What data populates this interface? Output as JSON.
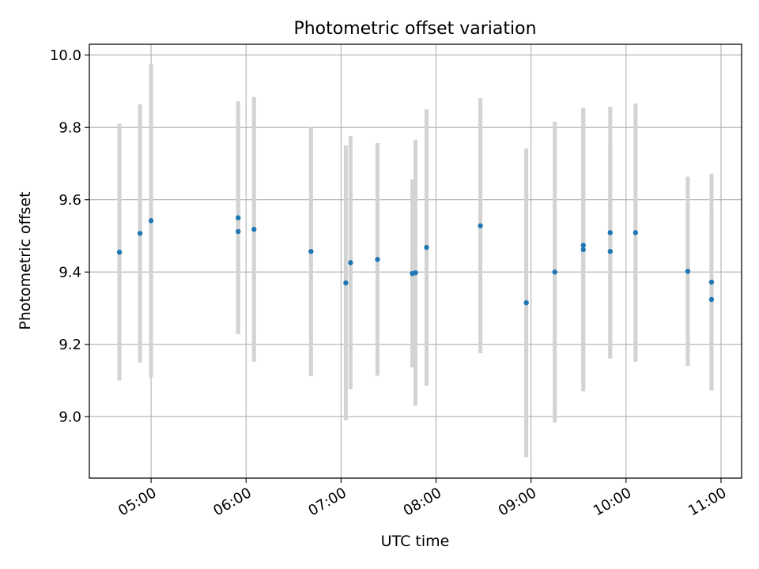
{
  "chart_data": {
    "type": "scatter",
    "title": "Photometric offset variation",
    "xlabel": "UTC time",
    "ylabel": "Photometric offset",
    "x_tick_labels": [
      "05:00",
      "06:00",
      "07:00",
      "08:00",
      "09:00",
      "10:00",
      "11:00"
    ],
    "x_ticks_minutes": [
      300,
      360,
      420,
      480,
      540,
      600,
      660
    ],
    "y_tick_labels": [
      "9.0",
      "9.2",
      "9.4",
      "9.6",
      "9.8",
      "10.0"
    ],
    "y_ticks": [
      9.0,
      9.2,
      9.4,
      9.6,
      9.8,
      10.0
    ],
    "xlim_minutes": [
      261,
      673
    ],
    "ylim": [
      8.83,
      10.03
    ],
    "grid": true,
    "point_color": "#1f77b4",
    "errorbar_color": "#d3d3d3",
    "points": [
      {
        "time": "04:40",
        "y": 9.455,
        "err": 0.355
      },
      {
        "time": "04:53",
        "y": 9.507,
        "err": 0.357
      },
      {
        "time": "05:00",
        "y": 9.542,
        "err": 0.433
      },
      {
        "time": "05:55",
        "y": 9.55,
        "err": 0.322
      },
      {
        "time": "05:55",
        "y": 9.512,
        "err": 0.28
      },
      {
        "time": "06:05",
        "y": 9.518,
        "err": 0.366
      },
      {
        "time": "06:41",
        "y": 9.457,
        "err": 0.345
      },
      {
        "time": "07:03",
        "y": 9.37,
        "err": 0.38
      },
      {
        "time": "07:06",
        "y": 9.426,
        "err": 0.35
      },
      {
        "time": "07:23",
        "y": 9.435,
        "err": 0.322
      },
      {
        "time": "07:45",
        "y": 9.396,
        "err": 0.26
      },
      {
        "time": "07:47",
        "y": 9.398,
        "err": 0.368
      },
      {
        "time": "07:54",
        "y": 9.468,
        "err": 0.382
      },
      {
        "time": "08:28",
        "y": 9.528,
        "err": 0.353
      },
      {
        "time": "08:57",
        "y": 9.315,
        "err": 0.427
      },
      {
        "time": "09:15",
        "y": 9.4,
        "err": 0.416
      },
      {
        "time": "09:33",
        "y": 9.474,
        "err": 0.38
      },
      {
        "time": "09:33",
        "y": 9.462,
        "err": 0.392
      },
      {
        "time": "09:50",
        "y": 9.509,
        "err": 0.348
      },
      {
        "time": "09:50",
        "y": 9.457,
        "err": 0.296
      },
      {
        "time": "10:06",
        "y": 9.509,
        "err": 0.357
      },
      {
        "time": "10:39",
        "y": 9.402,
        "err": 0.262
      },
      {
        "time": "10:54",
        "y": 9.372,
        "err": 0.3
      },
      {
        "time": "10:54",
        "y": 9.324,
        "err": 0.25
      }
    ]
  }
}
